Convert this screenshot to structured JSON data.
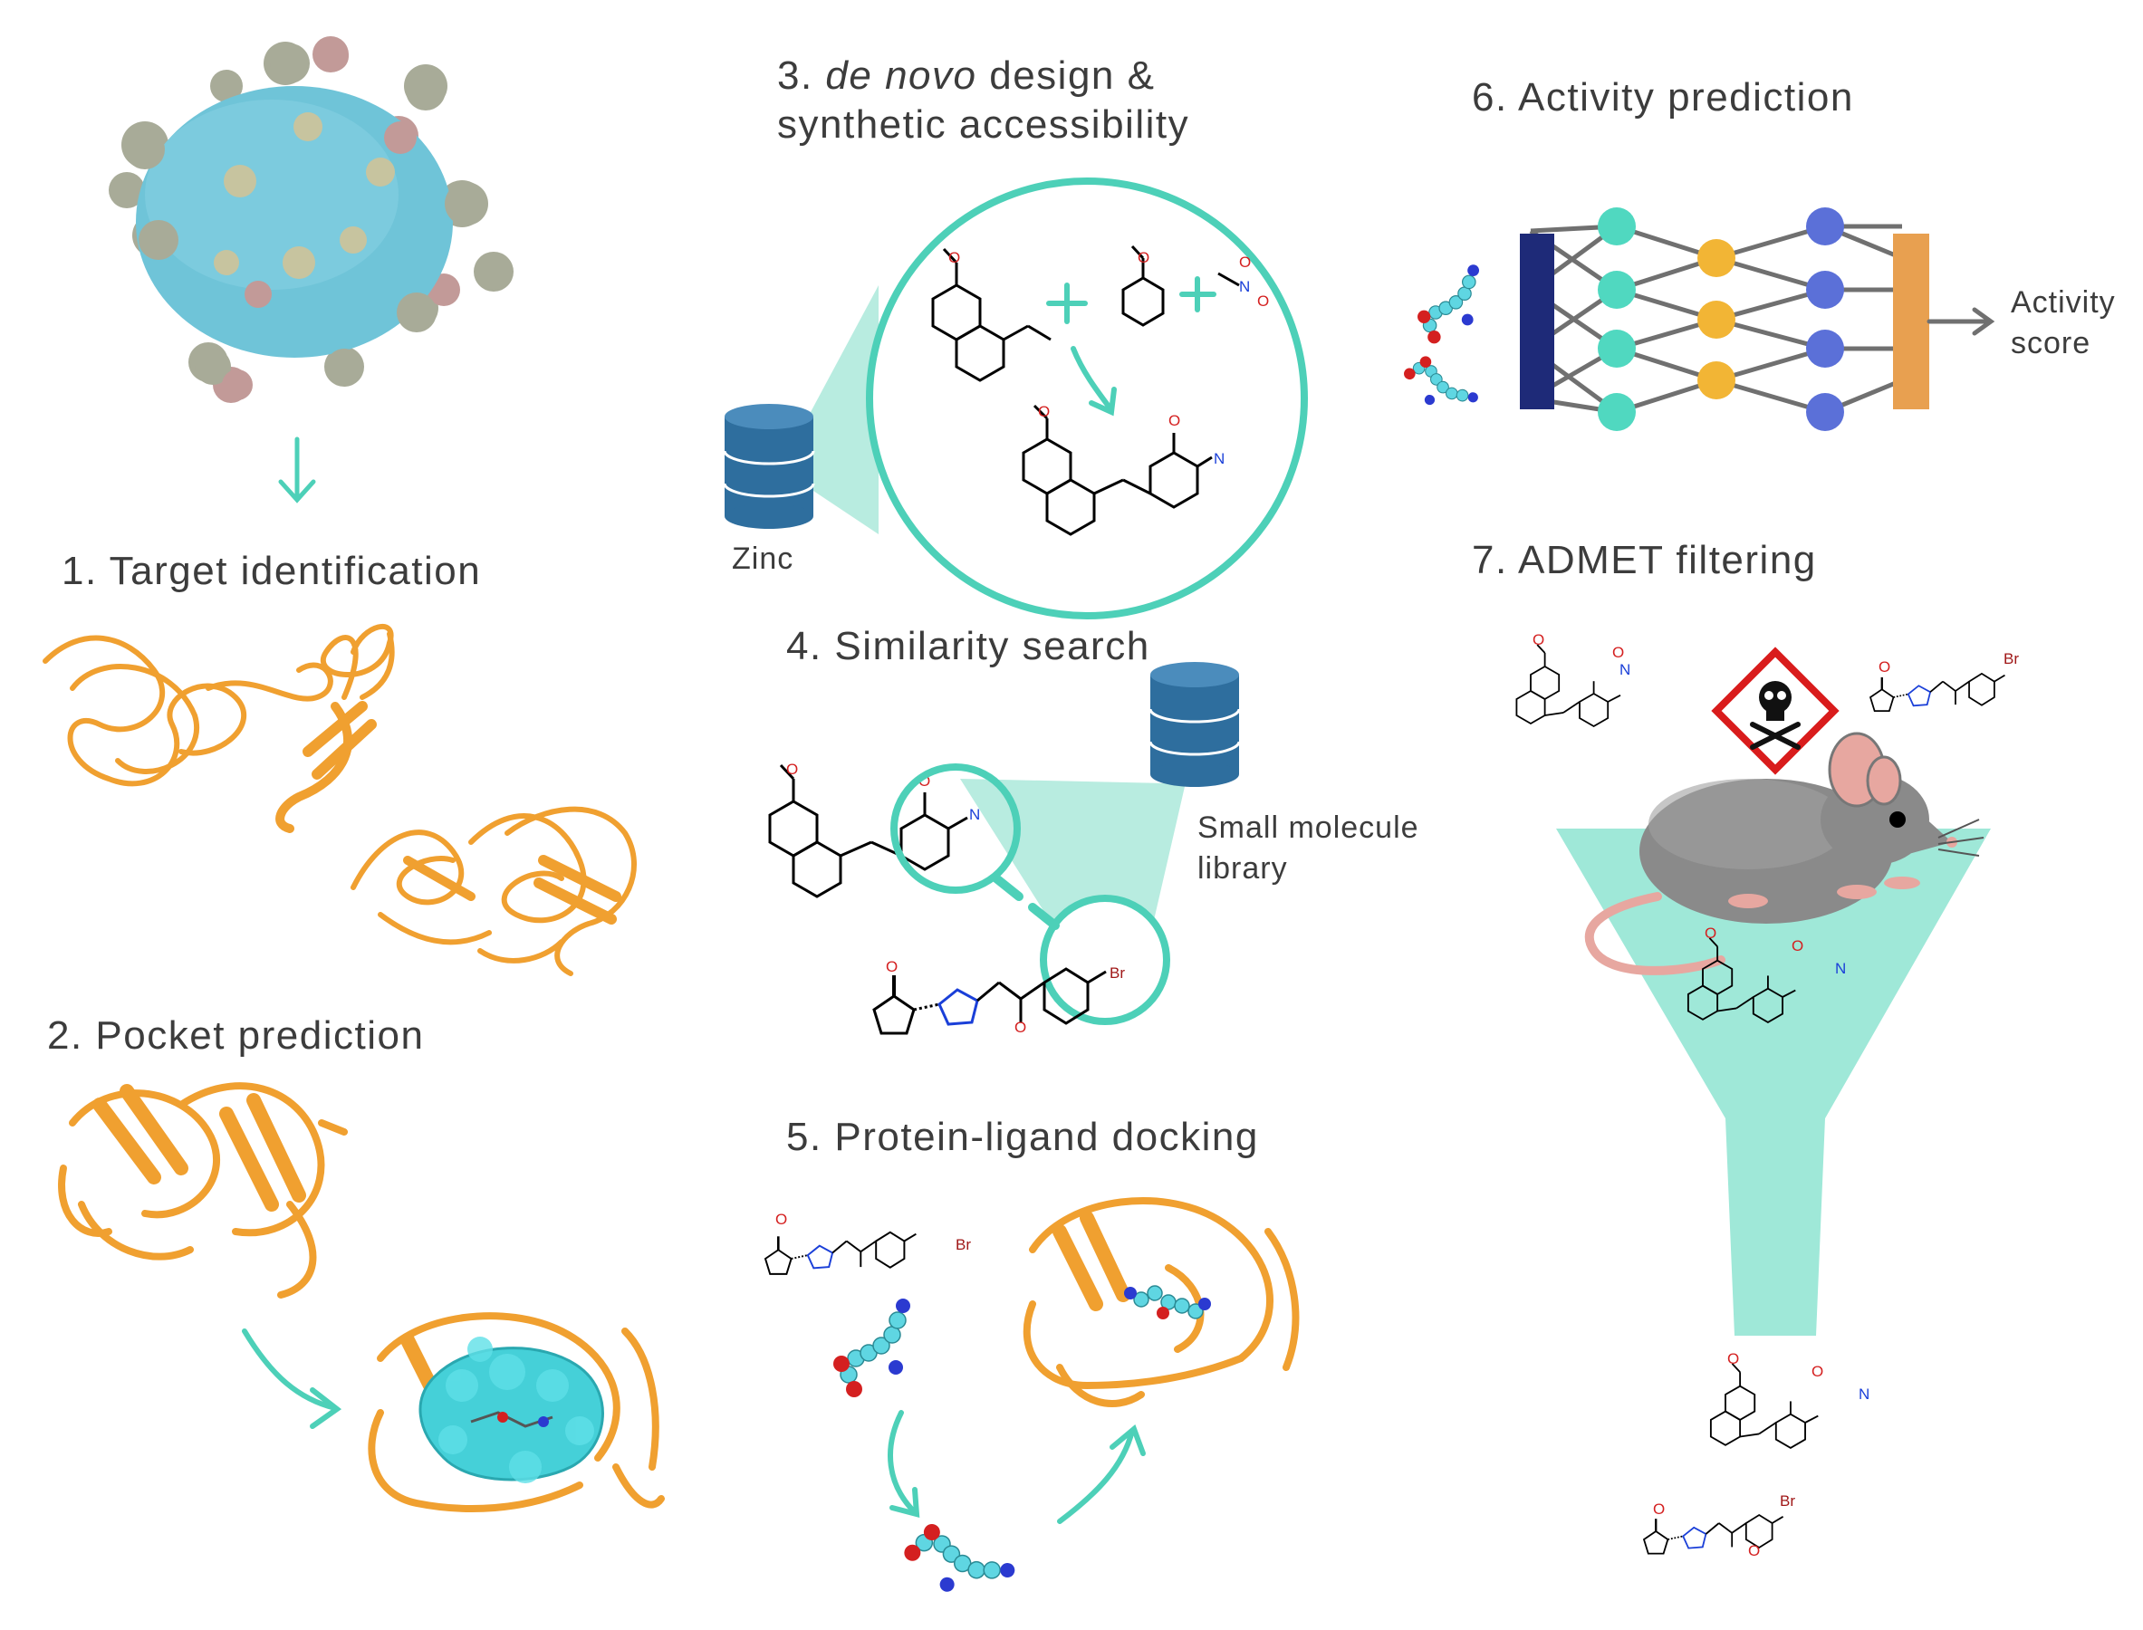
{
  "steps": {
    "s1": {
      "text": "1. Target identification"
    },
    "s2": {
      "text": "2. Pocket prediction"
    },
    "s3": {
      "line1_num": "3. ",
      "line1_em": "de novo",
      "line1_rest": " design &",
      "line2": "synthetic accessibility"
    },
    "s4": {
      "text": "4. Similarity search"
    },
    "s5": {
      "text": "5. Protein-ligand docking"
    },
    "s6": {
      "text": "6. Activity prediction"
    },
    "s7": {
      "text": "7. ADMET filtering"
    }
  },
  "labels": {
    "zinc": "Zinc",
    "library_line1": "Small molecule",
    "library_line2": "library",
    "activity_line1": "Activity",
    "activity_line2": "score"
  },
  "atoms": {
    "oxygen": "O",
    "nitrogen": "N",
    "bromine": "Br"
  },
  "colors": {
    "teal": "#4dd0b8",
    "teal_light": "#b8ece0",
    "protein": "#f0a030",
    "pocket": "#45d0d8",
    "db_blue": "#2e6e9e",
    "nn_input": "#1e2a78",
    "nn_hidden1": "#50d8c0",
    "nn_hidden2": "#f2b535",
    "nn_hidden3": "#5b70d8",
    "nn_output": "#e8a050",
    "virus": "#6fc4d8",
    "mouse": "#8a8a8a",
    "hazard_red": "#d91c1c"
  },
  "icons": [
    "virus-illustration",
    "protein-ribbon",
    "database-icon",
    "neural-network",
    "mouse-illustration",
    "toxic-hazard-icon",
    "funnel"
  ]
}
